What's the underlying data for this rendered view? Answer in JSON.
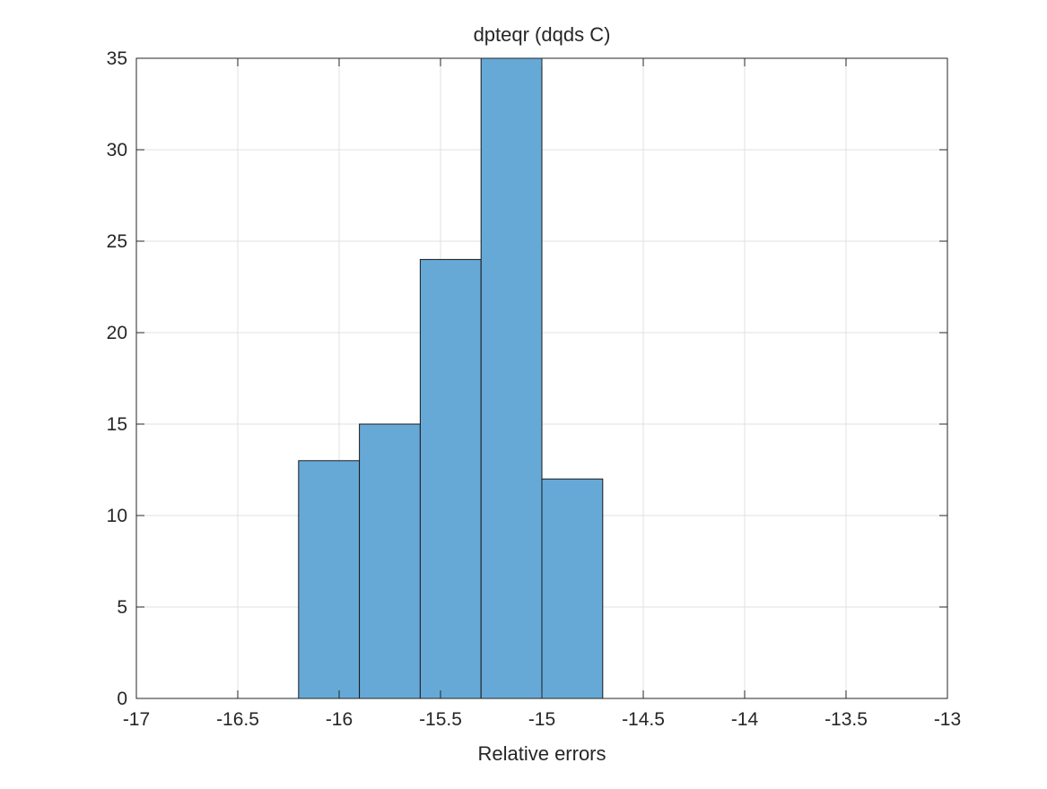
{
  "chart_data": {
    "type": "bar",
    "title": "dpteqr (dqds C)",
    "xlabel": "Relative errors",
    "ylabel": "",
    "xlim": [
      -17,
      -13
    ],
    "ylim": [
      0,
      35
    ],
    "xticks": [
      -17,
      -16.5,
      -16,
      -15.5,
      -15,
      -14.5,
      -14,
      -13.5,
      -13
    ],
    "xtick_labels": [
      "-17",
      "-16.5",
      "-16",
      "-15.5",
      "-15",
      "-14.5",
      "-14",
      "-13.5",
      "-13"
    ],
    "yticks": [
      0,
      5,
      10,
      15,
      20,
      25,
      30,
      35
    ],
    "ytick_labels": [
      "0",
      "5",
      "10",
      "15",
      "20",
      "25",
      "30",
      "35"
    ],
    "bin_edges": [
      -16.2,
      -15.9,
      -15.6,
      -15.3,
      -15.0,
      -14.7
    ],
    "values": [
      13,
      15,
      24,
      35,
      12
    ],
    "grid": true,
    "colors": {
      "bar_fill": "#66a9d7",
      "bar_edge": "#1a1a1a",
      "grid": "#e0e0e0",
      "axis": "#262626"
    }
  }
}
